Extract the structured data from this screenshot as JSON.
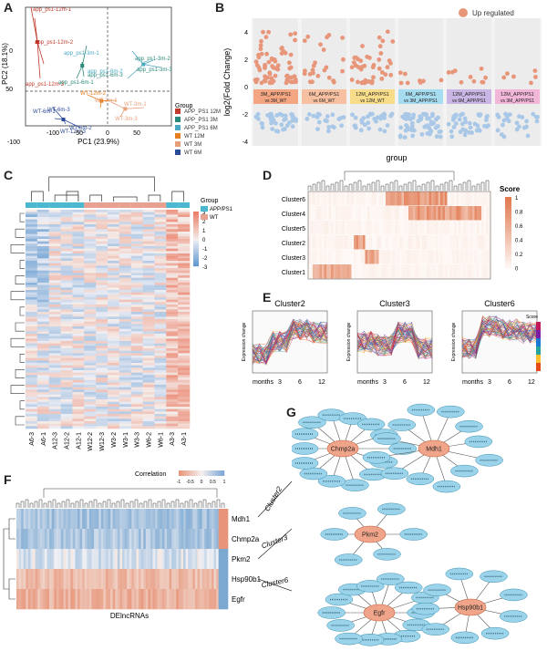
{
  "panels": {
    "A": {
      "label": "A",
      "xlabel": "PC1 (23.9%)",
      "ylabel": "PC2 (18.1%)",
      "xticks": [
        "-100",
        "-50",
        "0",
        "50"
      ],
      "yticks": [
        "-100",
        "-50",
        "0",
        "50"
      ],
      "legend_title": "Group",
      "legend": [
        {
          "name": "APP_PS1 12M",
          "color": "#c0392b"
        },
        {
          "name": "APP_PS1 3M",
          "color": "#2a8a7a"
        },
        {
          "name": "APP_PS1 6M",
          "color": "#4aa8c0"
        },
        {
          "name": "WT 12M",
          "color": "#e67e22"
        },
        {
          "name": "WT 3M",
          "color": "#e8a07a"
        },
        {
          "name": "WT 6M",
          "color": "#2c4a9a"
        }
      ],
      "sample_labels": [
        {
          "text": "app_ps1-12m-1",
          "color": "#c0392b"
        },
        {
          "text": "app_ps1-12m-2",
          "color": "#c0392b"
        },
        {
          "text": "app_ps1-12m-3",
          "color": "#c0392b"
        },
        {
          "text": "app_ps1-3m-2",
          "color": "#2a8a7a"
        },
        {
          "text": "app_ps1-3m-3",
          "color": "#2a8a7a"
        },
        {
          "text": "app_ps1-6m-3",
          "color": "#2a8a7a"
        },
        {
          "text": "app_ps1-6m-1",
          "color": "#2a8a7a"
        },
        {
          "text": "app_ps1-3m-1",
          "color": "#4aa8c0"
        },
        {
          "text": "app_ps1-6m-2",
          "color": "#4aa8c0"
        },
        {
          "text": "WT-12m-2",
          "color": "#e67e22"
        },
        {
          "text": "WT-3m-1",
          "color": "#e8a07a"
        },
        {
          "text": "WT-3m-2",
          "color": "#e8a07a"
        },
        {
          "text": "WT-3m-3",
          "color": "#e8a07a"
        },
        {
          "text": "WT-6m-3",
          "color": "#2c4a9a"
        },
        {
          "text": "WT-6m-1",
          "color": "#2c4a9a"
        },
        {
          "text": "WT-12m-3",
          "color": "#2c4a9a"
        },
        {
          "text": "WT-6m-2",
          "color": "#2c4a9a"
        }
      ]
    },
    "B": {
      "label": "B",
      "ylabel": "log2(Fold Change)",
      "xlabel": "group",
      "yticks": [
        "4",
        "2",
        "0",
        "-2",
        "-4"
      ],
      "legend": [
        {
          "name": "Up regulated",
          "color": "#e8967a"
        },
        {
          "name": "Down regulated",
          "color": "#a9c8e8"
        }
      ],
      "groups": [
        {
          "line1": "3M_APP/PS1",
          "line2": "vs 3M_WT",
          "color": "#f4a582"
        },
        {
          "line1": "6M_APP/PS1",
          "line2": "vs 6M_WT",
          "color": "#f7c0a0"
        },
        {
          "line1": "12M_APP/PS1",
          "line2": "vs 12M_WT",
          "color": "#f7dc8a"
        },
        {
          "line1": "6M_APP/PS1",
          "line2": "vs 3M_APP/PS1",
          "color": "#a6dcef"
        },
        {
          "line1": "12M_APP/PS1",
          "line2": "vs 6M_APP/PS1",
          "color": "#c9b6e4"
        },
        {
          "line1": "12M_APP/PS1",
          "line2": "vs 3M_APP/PS1",
          "color": "#f2b6d8"
        }
      ]
    },
    "C": {
      "label": "C",
      "legend_title": "Group",
      "legend": [
        {
          "name": "APP/PS1",
          "color": "#4cb8d0"
        },
        {
          "name": "WT",
          "color": "#e8a090"
        }
      ],
      "scale_ticks": [
        "3",
        "2",
        "1",
        "0",
        "-1",
        "-2",
        "-3"
      ],
      "columns": [
        "A6-3",
        "A6-1",
        "A12-3",
        "A12-2",
        "A12-1",
        "W12-2",
        "W12-3",
        "W3-2",
        "W3-1",
        "W3-3",
        "W6-2",
        "W6-1",
        "A3-3",
        "A3-1"
      ]
    },
    "D": {
      "label": "D",
      "rows": [
        "Cluster6",
        "Cluster4",
        "Cluster5",
        "Cluster2",
        "Cluster3",
        "Cluster1"
      ],
      "legend_title": "Score",
      "scale_ticks": [
        "1",
        "0.8",
        "0.6",
        "0.4",
        "0.2",
        "0"
      ]
    },
    "E": {
      "label": "E",
      "clusters": [
        "Cluster2",
        "Cluster3",
        "Cluster6"
      ],
      "ylabel": "Expression change",
      "xlabel": "months",
      "xticks": [
        "3",
        "6",
        "12"
      ],
      "legend_title": "Score"
    },
    "F": {
      "label": "F",
      "legend_title": "Correlation",
      "scale_ticks": [
        "-1",
        "-0.5",
        "0",
        "0.5",
        "1"
      ],
      "rows": [
        "Mdh1",
        "Chmp2a",
        "Pkm2",
        "Hsp90b1",
        "Egfr"
      ],
      "xlabel": "DElncRNAs",
      "cluster_labels": [
        "Cluster2",
        "Cluster3",
        "Cluster6"
      ]
    },
    "G": {
      "label": "G",
      "networks": [
        {
          "hubs": [
            "Chmp2a",
            "Mdh1"
          ]
        },
        {
          "hubs": [
            "Pkm2"
          ]
        },
        {
          "hubs": [
            "Egfr",
            "Hsp90b1"
          ]
        }
      ]
    }
  }
}
